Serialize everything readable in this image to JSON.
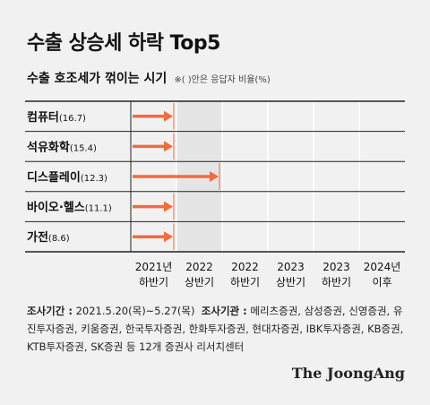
{
  "title": "수출 상승세 하락 Top5",
  "subtitle": "수출 호조세가 꺾이는 시기",
  "subnote": "※( )안은 응답자 비율(%)",
  "colors": {
    "arrow": "#f26a3d",
    "frame": "#222222",
    "gridline": "#ffffff",
    "highlight": "#e5e5e5"
  },
  "chart_data": {
    "type": "bar",
    "categories": [
      {
        "name": "컴퓨터",
        "pct": "(16.7)"
      },
      {
        "name": "석유화학",
        "pct": "(15.4)"
      },
      {
        "name": "디스플레이",
        "pct": "(12.3)"
      },
      {
        "name": "바이오·헬스",
        "pct": "(11.1)"
      },
      {
        "name": "가전",
        "pct": "(8.6)"
      }
    ],
    "x_periods": [
      {
        "year": "2021년",
        "half": "하반기"
      },
      {
        "year": "2022",
        "half": "상반기"
      },
      {
        "year": "2022",
        "half": "하반기"
      },
      {
        "year": "2023",
        "half": "상반기"
      },
      {
        "year": "2023",
        "half": "하반기"
      },
      {
        "year": "2024년",
        "half": "이후"
      }
    ],
    "values": [
      "2021년 하반기",
      "2021년 하반기",
      "2022 상반기",
      "2021년 하반기",
      "2021년 하반기"
    ],
    "value_index": [
      0,
      0,
      1,
      0,
      0
    ],
    "highlight_period_index": 1
  },
  "footer": {
    "survey_period_label": "조사기간 :",
    "survey_period": "2021.5.20(목)~5.27(목)",
    "institutions_label": "조사기관 :",
    "institutions": "메리츠증권, 삼성증권, 신영증권, 유진투자증권, 키움증권, 한국투자증권, 한화투자증권, 현대차증권, IBK투자증권, KB증권, KTB투자증권, SK증권 등 12개 증권사 리서치센터"
  },
  "brand": "The JoongAng"
}
